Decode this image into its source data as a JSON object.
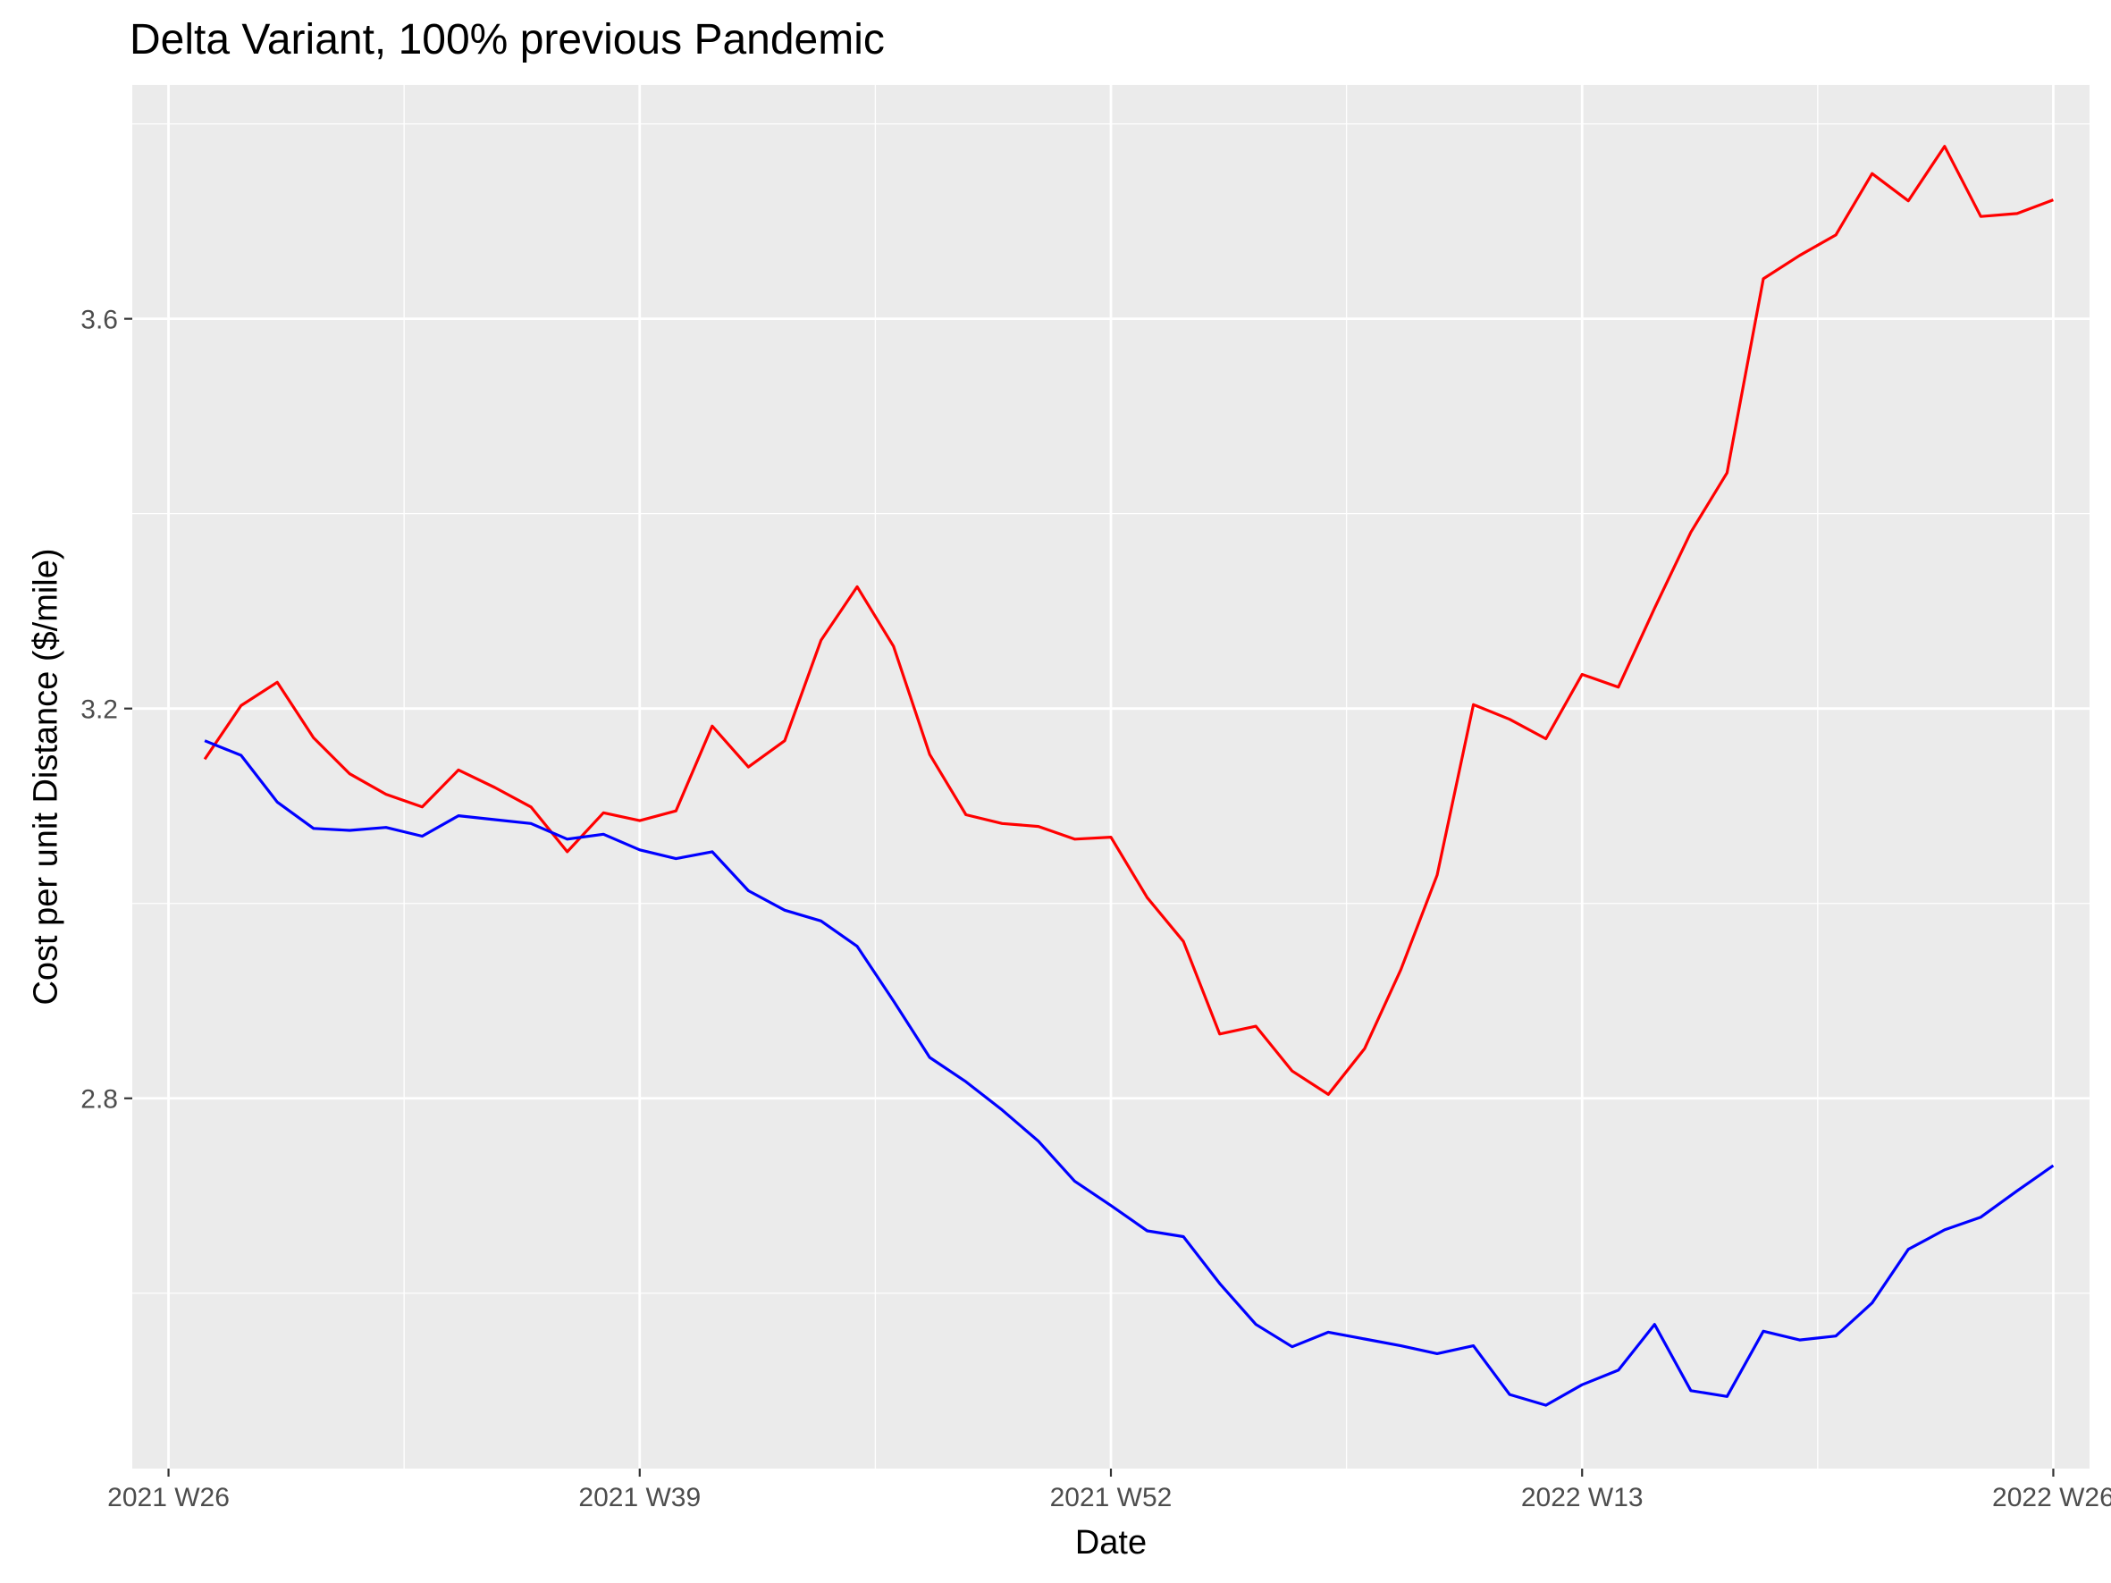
{
  "chart_data": {
    "type": "line",
    "title": "Delta Variant, 100% previous Pandemic",
    "xlabel": "Date",
    "ylabel": "Cost per unit Distance ($/mile)",
    "x_unit": "ISO week",
    "x_ticks": [
      "2021 W26",
      "2021 W39",
      "2021 W52",
      "2022 W13",
      "2022 W26"
    ],
    "y_ticks": [
      2.8,
      3.2,
      3.6
    ],
    "xlim": [
      "2021 W25",
      "2022 W27"
    ],
    "ylim": [
      2.42,
      3.84
    ],
    "grid": true,
    "legend": "none",
    "x": [
      "2021 W27",
      "2021 W28",
      "2021 W29",
      "2021 W30",
      "2021 W31",
      "2021 W32",
      "2021 W33",
      "2021 W34",
      "2021 W35",
      "2021 W36",
      "2021 W37",
      "2021 W38",
      "2021 W39",
      "2021 W40",
      "2021 W41",
      "2021 W42",
      "2021 W43",
      "2021 W44",
      "2021 W45",
      "2021 W46",
      "2021 W47",
      "2021 W48",
      "2021 W49",
      "2021 W50",
      "2021 W51",
      "2021 W52",
      "2022 W01",
      "2022 W02",
      "2022 W03",
      "2022 W04",
      "2022 W05",
      "2022 W06",
      "2022 W07",
      "2022 W08",
      "2022 W09",
      "2022 W10",
      "2022 W11",
      "2022 W12",
      "2022 W13",
      "2022 W14",
      "2022 W15",
      "2022 W16",
      "2022 W17",
      "2022 W18",
      "2022 W19",
      "2022 W20",
      "2022 W21",
      "2022 W22",
      "2022 W23",
      "2022 W24",
      "2022 W25",
      "2022 W26"
    ],
    "series": [
      {
        "color": "#ff0000",
        "values": [
          3.148,
          3.203,
          3.227,
          3.17,
          3.133,
          3.112,
          3.099,
          3.137,
          3.119,
          3.099,
          3.053,
          3.093,
          3.085,
          3.095,
          3.182,
          3.14,
          3.167,
          3.27,
          3.325,
          3.264,
          3.153,
          3.091,
          3.082,
          3.079,
          3.066,
          3.068,
          3.006,
          2.961,
          2.866,
          2.874,
          2.828,
          2.804,
          2.851,
          2.932,
          3.029,
          3.204,
          3.189,
          3.169,
          3.235,
          3.222,
          3.303,
          3.381,
          3.442,
          3.641,
          3.665,
          3.686,
          3.749,
          3.721,
          3.777,
          3.705,
          3.708,
          3.722
        ]
      },
      {
        "color": "#0000ff",
        "values": [
          3.167,
          3.152,
          3.104,
          3.077,
          3.075,
          3.078,
          3.069,
          3.09,
          3.086,
          3.082,
          3.066,
          3.071,
          3.055,
          3.046,
          3.053,
          3.013,
          2.993,
          2.982,
          2.956,
          2.9,
          2.842,
          2.817,
          2.788,
          2.756,
          2.715,
          2.69,
          2.664,
          2.658,
          2.61,
          2.568,
          2.545,
          2.56,
          2.553,
          2.546,
          2.538,
          2.546,
          2.496,
          2.485,
          2.506,
          2.521,
          2.568,
          2.5,
          2.494,
          2.561,
          2.552,
          2.556,
          2.59,
          2.645,
          2.665,
          2.678,
          2.705,
          2.731
        ]
      }
    ]
  }
}
